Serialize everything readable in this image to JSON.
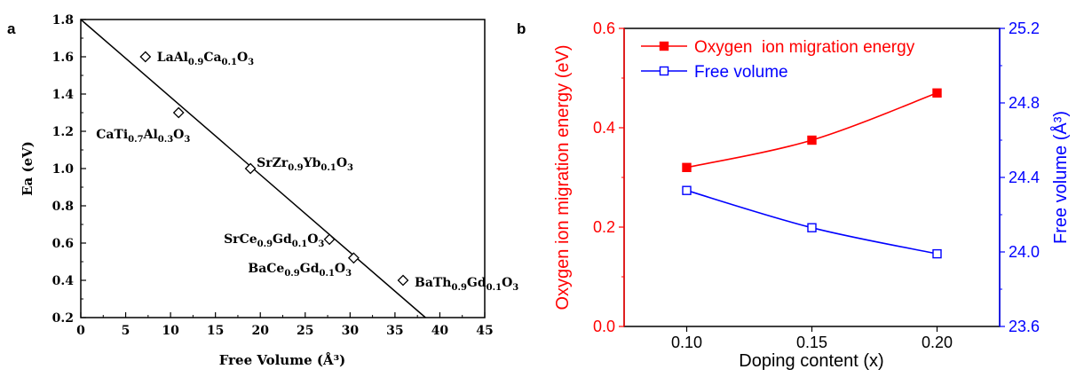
{
  "chart_data": [
    {
      "panel_label": "a",
      "type": "scatter",
      "xlabel": "Free Volume (Å³)",
      "ylabel": "Ea (eV)",
      "xlim": [
        0,
        45
      ],
      "ylim": [
        0.2,
        1.8
      ],
      "x_ticks": [
        "0",
        "5",
        "10",
        "15",
        "20",
        "25",
        "30",
        "35",
        "40",
        "45"
      ],
      "y_ticks": [
        "0.2",
        "0.4",
        "0.6",
        "0.8",
        "1.0",
        "1.2",
        "1.4",
        "1.6",
        "1.8"
      ],
      "points": [
        {
          "label": "LaAl0.9Ca0.1O3",
          "x": 7.2,
          "y": 1.6
        },
        {
          "label": "CaTi0.7Al0.3O3",
          "x": 10.9,
          "y": 1.3
        },
        {
          "label": "SrZr0.9Yb0.1O3",
          "x": 18.9,
          "y": 1.0
        },
        {
          "label": "SrCe0.9Gd0.1O3",
          "x": 27.7,
          "y": 0.62
        },
        {
          "label": "BaCe0.9Gd0.1O3",
          "x": 30.4,
          "y": 0.52
        },
        {
          "label": "BaTh0.9Gd0.1O3",
          "x": 35.9,
          "y": 0.4
        }
      ],
      "fit_line": {
        "x": [
          0,
          38.4
        ],
        "y": [
          1.8,
          0.2
        ]
      },
      "marker": "open-diamond",
      "color": "#000000"
    },
    {
      "panel_label": "b",
      "type": "line",
      "xlabel": "Doping content (x)",
      "ylabel_left": "Oxygen ion migration energy (eV)",
      "ylabel_right": "Free volume (Å³)",
      "xlim": [
        0.075,
        0.225
      ],
      "ylim_left": [
        0.0,
        0.6
      ],
      "ylim_right": [
        23.6,
        25.2
      ],
      "x_ticks": [
        "0.10",
        "0.15",
        "0.20"
      ],
      "y_ticks_left": [
        "0.0",
        "0.2",
        "0.4",
        "0.6"
      ],
      "y_ticks_right": [
        "23.6",
        "24.0",
        "24.4",
        "24.8",
        "25.2"
      ],
      "x": [
        0.1,
        0.15,
        0.2
      ],
      "series": [
        {
          "name": "Oxygen  ion migration energy",
          "axis": "left",
          "values": [
            0.32,
            0.375,
            0.47
          ],
          "color": "#ff0000",
          "marker": "filled-square"
        },
        {
          "name": "Free volume",
          "axis": "right",
          "values": [
            24.33,
            24.13,
            23.99
          ],
          "color": "#0000ff",
          "marker": "open-square"
        }
      ],
      "legend_position": "top-left",
      "left_axis_color": "#ff0000",
      "right_axis_color": "#0000ff"
    }
  ]
}
